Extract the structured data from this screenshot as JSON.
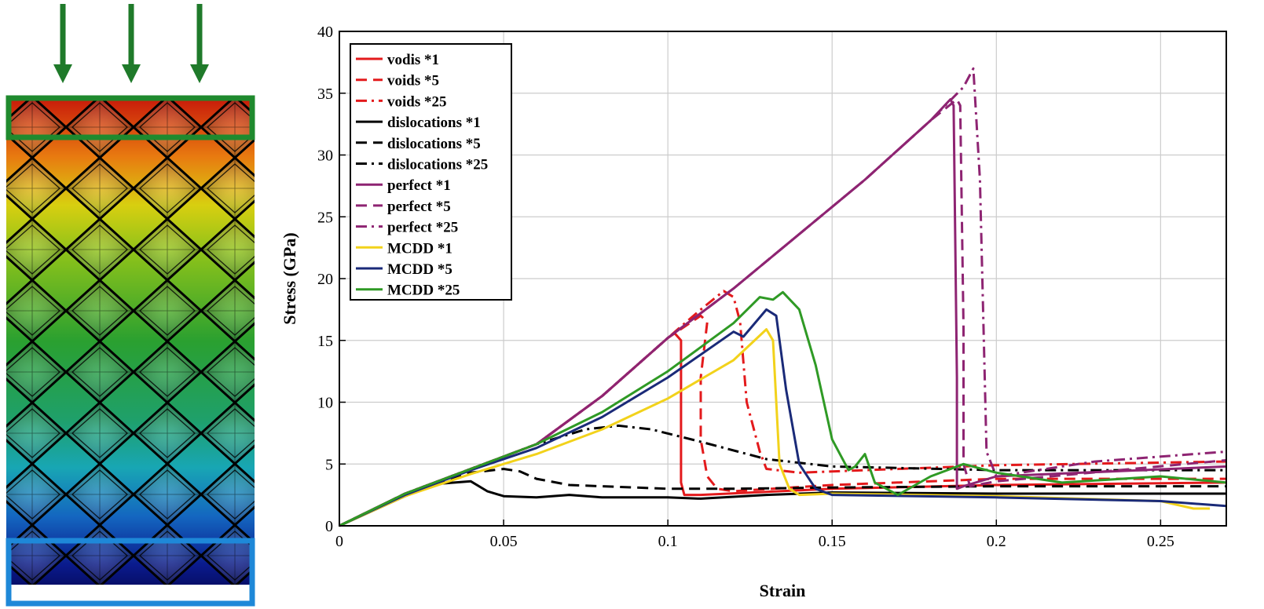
{
  "colors": {
    "arrow": "#1f7a2a",
    "top_box": "#1f8a2e",
    "bottom_box": "#1e88d8",
    "grid": "#cccccc",
    "axis": "#000000"
  },
  "chart_data": {
    "type": "line",
    "title": "",
    "xlabel": "Strain",
    "ylabel": "Stress (GPa)",
    "xlim": [
      0,
      0.27
    ],
    "ylim": [
      0,
      40
    ],
    "xticks": [
      0,
      0.05,
      0.1,
      0.15,
      0.2,
      0.25
    ],
    "xtick_labels": [
      "0",
      "0.05",
      "0.1",
      "0.15",
      "0.2",
      "0.25"
    ],
    "yticks": [
      0,
      5,
      10,
      15,
      20,
      25,
      30,
      35,
      40
    ],
    "ytick_labels": [
      "0",
      "5",
      "10",
      "15",
      "20",
      "25",
      "30",
      "35",
      "40"
    ],
    "grid": true,
    "legend_position": "top-left",
    "series": [
      {
        "name": "vodis *1",
        "color": "#e31a1c",
        "style": "solid",
        "x": [
          0,
          0.02,
          0.04,
          0.06,
          0.08,
          0.1,
          0.102,
          0.104,
          0.104,
          0.105,
          0.11,
          0.15,
          0.2,
          0.27
        ],
        "y": [
          0,
          2.6,
          4.6,
          6.6,
          10.5,
          15.2,
          15.6,
          15.0,
          3.5,
          2.5,
          2.5,
          3.0,
          3.3,
          3.5
        ]
      },
      {
        "name": "voids *5",
        "color": "#e31a1c",
        "style": "dashed",
        "x": [
          0,
          0.02,
          0.04,
          0.06,
          0.08,
          0.1,
          0.11,
          0.112,
          0.11,
          0.11,
          0.112,
          0.115,
          0.12,
          0.15,
          0.2,
          0.27
        ],
        "y": [
          0,
          2.6,
          4.6,
          6.6,
          10.5,
          15.2,
          17.0,
          16.5,
          12.0,
          7.0,
          4.0,
          3.0,
          2.8,
          3.3,
          3.8,
          3.8
        ]
      },
      {
        "name": "voids *25",
        "color": "#e31a1c",
        "style": "dashdot",
        "x": [
          0,
          0.02,
          0.04,
          0.06,
          0.08,
          0.1,
          0.11,
          0.117,
          0.12,
          0.122,
          0.124,
          0.128,
          0.13,
          0.14,
          0.2,
          0.27
        ],
        "y": [
          0,
          2.6,
          4.6,
          6.6,
          10.5,
          15.2,
          17.5,
          19.0,
          18.5,
          16.5,
          10.0,
          6.0,
          4.6,
          4.3,
          4.9,
          5.2
        ]
      },
      {
        "name": "dislocations *1",
        "color": "#000000",
        "style": "solid",
        "x": [
          0,
          0.01,
          0.02,
          0.03,
          0.035,
          0.04,
          0.045,
          0.05,
          0.06,
          0.07,
          0.08,
          0.1,
          0.11,
          0.13,
          0.15,
          0.2,
          0.27
        ],
        "y": [
          0,
          1.2,
          2.4,
          3.4,
          3.5,
          3.6,
          2.8,
          2.4,
          2.3,
          2.5,
          2.3,
          2.3,
          2.2,
          2.5,
          2.7,
          2.6,
          2.6
        ]
      },
      {
        "name": "dislocations *5",
        "color": "#000000",
        "style": "dashed",
        "x": [
          0,
          0.02,
          0.04,
          0.05,
          0.055,
          0.06,
          0.07,
          0.09,
          0.1,
          0.12,
          0.15,
          0.2,
          0.27
        ],
        "y": [
          0,
          2.5,
          4.3,
          4.6,
          4.4,
          3.8,
          3.3,
          3.1,
          3.0,
          3.0,
          3.1,
          3.2,
          3.2
        ]
      },
      {
        "name": "dislocations *25",
        "color": "#000000",
        "style": "dashdot",
        "x": [
          0,
          0.02,
          0.04,
          0.06,
          0.075,
          0.085,
          0.095,
          0.11,
          0.13,
          0.15,
          0.2,
          0.27
        ],
        "y": [
          0,
          2.6,
          4.6,
          6.6,
          7.8,
          8.1,
          7.8,
          6.8,
          5.4,
          4.8,
          4.5,
          4.5
        ]
      },
      {
        "name": "perfect *1",
        "color": "#8e2472",
        "style": "solid",
        "x": [
          0,
          0.02,
          0.04,
          0.06,
          0.08,
          0.1,
          0.12,
          0.14,
          0.16,
          0.18,
          0.186,
          0.187,
          0.188,
          0.188,
          0.19,
          0.2,
          0.27
        ],
        "y": [
          0,
          2.6,
          4.6,
          6.6,
          10.5,
          15.2,
          19.2,
          23.6,
          28.0,
          32.8,
          34.5,
          34.0,
          12.0,
          3.0,
          3.2,
          4.0,
          4.8
        ]
      },
      {
        "name": "perfect *5",
        "color": "#8e2472",
        "style": "dashed",
        "x": [
          0,
          0.02,
          0.04,
          0.06,
          0.08,
          0.1,
          0.12,
          0.14,
          0.16,
          0.18,
          0.188,
          0.189,
          0.19,
          0.19,
          0.192,
          0.2,
          0.27
        ],
        "y": [
          0,
          2.6,
          4.6,
          6.6,
          10.5,
          15.2,
          19.2,
          23.6,
          28.0,
          32.8,
          34.5,
          34.0,
          16.0,
          5.0,
          3.2,
          3.6,
          5.3
        ]
      },
      {
        "name": "perfect *25",
        "color": "#8e2472",
        "style": "dashdot",
        "x": [
          0,
          0.02,
          0.04,
          0.06,
          0.08,
          0.1,
          0.12,
          0.14,
          0.16,
          0.18,
          0.19,
          0.193,
          0.195,
          0.196,
          0.197,
          0.2,
          0.23,
          0.27
        ],
        "y": [
          0,
          2.6,
          4.6,
          6.6,
          10.5,
          15.2,
          19.2,
          23.6,
          28.0,
          32.8,
          35.5,
          37.0,
          28.0,
          17.0,
          6.0,
          4.0,
          5.2,
          6.0
        ]
      },
      {
        "name": "MCDD *1",
        "color": "#f2d21b",
        "style": "solid",
        "x": [
          0,
          0.02,
          0.04,
          0.06,
          0.08,
          0.1,
          0.12,
          0.13,
          0.132,
          0.134,
          0.137,
          0.14,
          0.15,
          0.2,
          0.25,
          0.26,
          0.265
        ],
        "y": [
          0,
          2.4,
          4.2,
          5.8,
          7.8,
          10.3,
          13.4,
          15.9,
          15.0,
          5.0,
          3.0,
          2.5,
          2.6,
          2.4,
          2.0,
          1.4,
          1.4
        ]
      },
      {
        "name": "MCDD *5",
        "color": "#1a2a78",
        "style": "solid",
        "x": [
          0,
          0.02,
          0.04,
          0.06,
          0.08,
          0.1,
          0.12,
          0.123,
          0.13,
          0.133,
          0.136,
          0.14,
          0.145,
          0.15,
          0.2,
          0.25,
          0.27
        ],
        "y": [
          0,
          2.5,
          4.5,
          6.3,
          8.8,
          12.0,
          15.7,
          15.3,
          17.5,
          17.0,
          11.0,
          5.0,
          3.0,
          2.5,
          2.3,
          2.0,
          1.6
        ]
      },
      {
        "name": "MCDD *25",
        "color": "#2f9a25",
        "style": "solid",
        "x": [
          0,
          0.02,
          0.04,
          0.06,
          0.08,
          0.1,
          0.12,
          0.128,
          0.132,
          0.135,
          0.14,
          0.145,
          0.15,
          0.155,
          0.157,
          0.16,
          0.163,
          0.17,
          0.18,
          0.19,
          0.2,
          0.22,
          0.25,
          0.27
        ],
        "y": [
          0,
          2.6,
          4.6,
          6.6,
          9.2,
          12.5,
          16.4,
          18.5,
          18.3,
          18.9,
          17.5,
          13.0,
          7.0,
          4.5,
          4.8,
          5.8,
          3.5,
          2.5,
          4.0,
          5.0,
          4.3,
          3.5,
          4.0,
          3.5
        ]
      }
    ]
  }
}
